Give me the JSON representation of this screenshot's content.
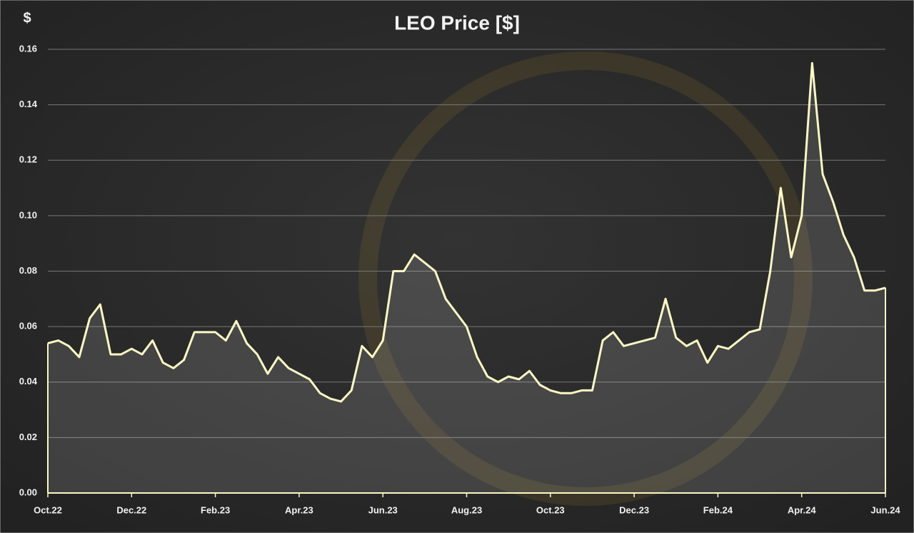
{
  "chart_data": {
    "type": "area",
    "title": "LEO Price [$]",
    "y_label": "$",
    "categories": [
      "Oct.22",
      null,
      null,
      null,
      null,
      null,
      null,
      null,
      "Dec.22",
      null,
      null,
      null,
      null,
      null,
      null,
      null,
      "Feb.23",
      null,
      null,
      null,
      null,
      null,
      null,
      null,
      "Apr.23",
      null,
      null,
      null,
      null,
      null,
      null,
      null,
      "Jun.23",
      null,
      null,
      null,
      null,
      null,
      null,
      null,
      "Aug.23",
      null,
      null,
      null,
      null,
      null,
      null,
      null,
      "Oct.23",
      null,
      null,
      null,
      null,
      null,
      null,
      null,
      "Dec.23",
      null,
      null,
      null,
      null,
      null,
      null,
      null,
      "Feb.24",
      null,
      null,
      null,
      null,
      null,
      null,
      null,
      "Apr.24",
      null,
      null,
      null,
      null,
      null,
      null,
      null,
      "Jun.24"
    ],
    "series": [
      {
        "name": "LEO Price",
        "color": "#fdf8c4",
        "values": [
          0.054,
          0.055,
          0.053,
          0.049,
          0.063,
          0.068,
          0.05,
          0.05,
          0.052,
          0.05,
          0.055,
          0.047,
          0.045,
          0.048,
          0.058,
          0.058,
          0.058,
          0.055,
          0.062,
          0.054,
          0.05,
          0.043,
          0.049,
          0.045,
          0.043,
          0.041,
          0.036,
          0.034,
          0.033,
          0.037,
          0.053,
          0.049,
          0.055,
          0.08,
          0.08,
          0.086,
          0.083,
          0.08,
          0.07,
          0.065,
          0.06,
          0.049,
          0.042,
          0.04,
          0.042,
          0.041,
          0.044,
          0.039,
          0.037,
          0.036,
          0.036,
          0.037,
          0.037,
          0.055,
          0.058,
          0.053,
          0.054,
          0.055,
          0.056,
          0.07,
          0.056,
          0.053,
          0.055,
          0.047,
          0.053,
          0.052,
          0.055,
          0.058,
          0.059,
          0.08,
          0.11,
          0.085,
          0.1,
          0.155,
          0.115,
          0.105,
          0.093,
          0.085,
          0.073,
          0.073,
          0.074
        ]
      }
    ],
    "ylim": [
      0,
      0.16
    ],
    "yticks": [
      {
        "value": 0,
        "label": "0.00"
      },
      0.02,
      0.04,
      0.06,
      0.08,
      {
        "value": 0.1,
        "label": "0.10"
      },
      0.12,
      0.14,
      0.16
    ],
    "grid": true
  }
}
